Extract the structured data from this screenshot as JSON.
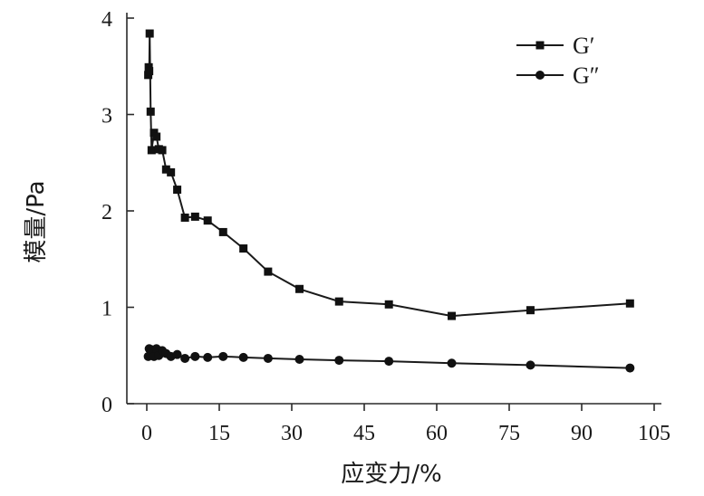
{
  "chart_data": {
    "type": "line",
    "xlabel": "应变力/%",
    "ylabel": "模量/Pa",
    "xlim": [
      0,
      105
    ],
    "ylim": [
      0,
      4
    ],
    "xticks": [
      "0",
      "15",
      "30",
      "45",
      "60",
      "75",
      "90",
      "105"
    ],
    "yticks": [
      "0",
      "1",
      "2",
      "3",
      "4"
    ],
    "grid": false,
    "legend": "top-right",
    "series": [
      {
        "name": "G′",
        "marker": "square",
        "x": [
          0.3,
          0.4,
          0.5,
          0.6,
          0.8,
          1.0,
          1.5,
          2.0,
          2.5,
          3.2,
          4.0,
          5.0,
          6.3,
          7.9,
          10.0,
          12.6,
          15.8,
          20.0,
          25.1,
          31.6,
          39.8,
          50.1,
          63.1,
          79.4,
          100.0
        ],
        "y": [
          3.41,
          3.49,
          3.45,
          3.84,
          3.03,
          2.63,
          2.81,
          2.77,
          2.64,
          2.63,
          2.43,
          2.4,
          2.22,
          1.93,
          1.94,
          1.9,
          1.78,
          1.61,
          1.37,
          1.19,
          1.06,
          1.03,
          0.91,
          0.97,
          1.04
        ]
      },
      {
        "name": "G″",
        "marker": "circle",
        "x": [
          0.3,
          0.5,
          0.8,
          1.0,
          1.5,
          2.0,
          2.5,
          3.2,
          4.0,
          5.0,
          6.3,
          7.9,
          10.0,
          12.6,
          15.8,
          20.0,
          25.1,
          31.6,
          39.8,
          50.1,
          63.1,
          79.4,
          100.0
        ],
        "y": [
          0.49,
          0.57,
          0.5,
          0.56,
          0.49,
          0.57,
          0.5,
          0.55,
          0.52,
          0.49,
          0.51,
          0.47,
          0.49,
          0.48,
          0.49,
          0.48,
          0.47,
          0.46,
          0.45,
          0.44,
          0.42,
          0.4,
          0.37
        ]
      }
    ]
  }
}
